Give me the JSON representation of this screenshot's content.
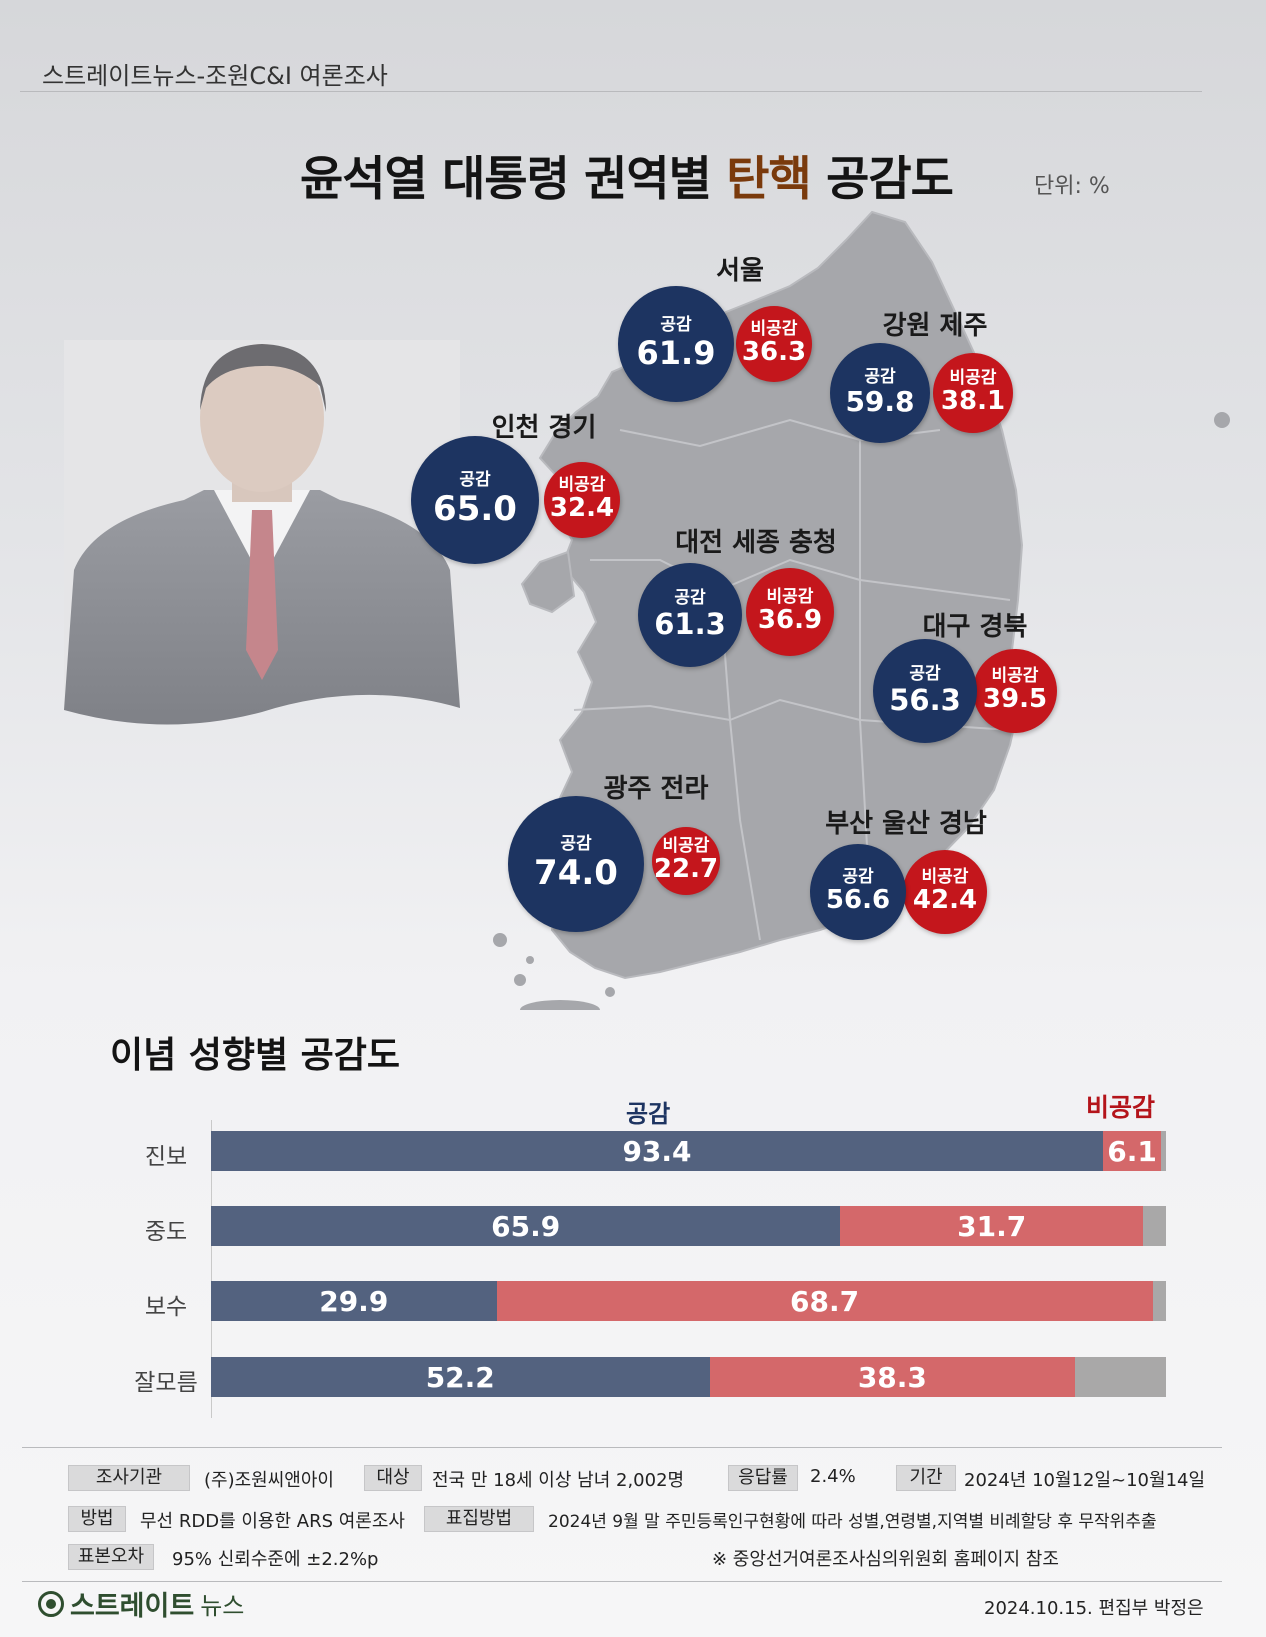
{
  "header": {
    "source": "스트레이트뉴스-조원C&I 여론조사",
    "title_part1": "윤석열 대통령 권역별 ",
    "title_highlight": "탄핵",
    "title_part2": " 공감도",
    "unit": "단위: %"
  },
  "colors": {
    "agree": "#1d3461",
    "disagree": "#c4161c",
    "bar_agree": "#53627f",
    "bar_disagree": "#d4686a",
    "bar_other": "#a9a8a8"
  },
  "chart_data": [
    {
      "type": "bubble-map",
      "title": "윤석열 대통령 권역별 탄핵 공감도",
      "unit": "단위: %",
      "agree_label": "공감",
      "disagree_label": "비공감",
      "regions": [
        {
          "name": "서울",
          "agree": 61.9,
          "disagree": 36.3
        },
        {
          "name": "강원 제주",
          "agree": 59.8,
          "disagree": 38.1
        },
        {
          "name": "인천 경기",
          "agree": 65.0,
          "disagree": 32.4
        },
        {
          "name": "대전 세종 충청",
          "agree": 61.3,
          "disagree": 36.9
        },
        {
          "name": "대구 경북",
          "agree": 56.3,
          "disagree": 39.5
        },
        {
          "name": "광주 전라",
          "agree": 74.0,
          "disagree": 22.7
        },
        {
          "name": "부산 울산 경남",
          "agree": 56.6,
          "disagree": 42.4
        }
      ]
    },
    {
      "type": "bar",
      "stacked": true,
      "orientation": "horizontal",
      "title": "이념 성향별 공감도",
      "categories": [
        "진보",
        "중도",
        "보수",
        "잘모름"
      ],
      "series": [
        {
          "name": "공감",
          "values": [
            93.4,
            65.9,
            29.9,
            52.2
          ]
        },
        {
          "name": "비공감",
          "values": [
            6.1,
            31.7,
            68.7,
            38.3
          ]
        }
      ],
      "xlim": [
        0,
        100
      ]
    }
  ],
  "survey": {
    "org_label": "조사기관",
    "org_value": "(주)조원씨앤아이",
    "target_label": "대상",
    "target_value": "전국 만 18세 이상 남녀 2,002명",
    "rate_label": "응답률",
    "rate_value": "2.4%",
    "period_label": "기간",
    "period_value": "2024년 10월12일~10월14일",
    "method_label": "방법",
    "method_value": "무선 RDD를 이용한 ARS 여론조사",
    "sampling_label": "표집방법",
    "sampling_value": "2024년 9월 말 주민등록인구현황에 따라 성별,연령별,지역별 비례할당 후 무작위추출",
    "error_label": "표본오차",
    "error_value": "95% 신뢰수준에 ±2.2%p",
    "note": "※ 중앙선거여론조사심의위원회 홈페이지 참조"
  },
  "footer": {
    "logo_main": "스트레이트",
    "logo_sub": "뉴스",
    "date_author": "2024.10.15. 편집부 박정은"
  }
}
